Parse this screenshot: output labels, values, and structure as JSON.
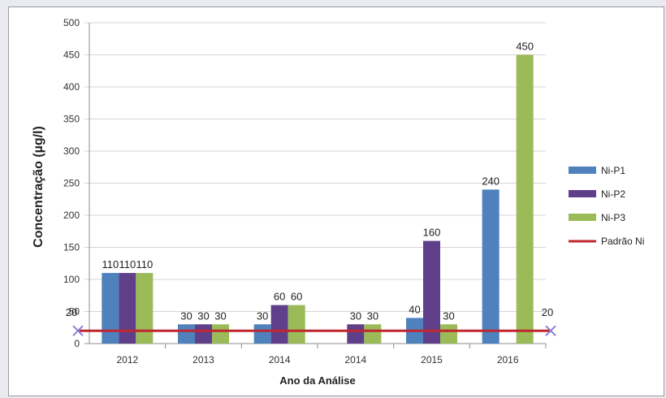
{
  "chart_data": {
    "type": "bar",
    "title": "",
    "xlabel": "Ano da Análise",
    "ylabel": "Concentração (µg/l)",
    "ylim": [
      0,
      500
    ],
    "yticks": [
      0,
      50,
      100,
      150,
      200,
      250,
      300,
      350,
      400,
      450,
      500
    ],
    "categories": [
      "2012",
      "2013",
      "2014",
      "2014",
      "2015",
      "2016"
    ],
    "series": [
      {
        "name": "Ni-P1",
        "color": "#4f81bd",
        "values": [
          110,
          30,
          30,
          null,
          40,
          240
        ]
      },
      {
        "name": "Ni-P2",
        "color": "#5f3f8a",
        "values": [
          110,
          30,
          60,
          30,
          160,
          null
        ]
      },
      {
        "name": "Ni-P3",
        "color": "#9bbb59",
        "values": [
          110,
          30,
          60,
          30,
          30,
          450
        ]
      }
    ],
    "reference_line": {
      "name": "Padrão Ni",
      "value": 20,
      "color": "#c0262e",
      "marker": "x",
      "marker_color": "#8a7fd8"
    },
    "data_labels": {
      "series": [
        [
          "110",
          "30",
          "30",
          "",
          "40",
          "240"
        ],
        [
          "110",
          "30",
          "60",
          "30",
          "160",
          ""
        ],
        [
          "110",
          "30",
          "60",
          "30",
          "30",
          "450"
        ]
      ],
      "reference_left": "20",
      "reference_right": "20"
    },
    "legend_position": "right",
    "grid": true
  }
}
